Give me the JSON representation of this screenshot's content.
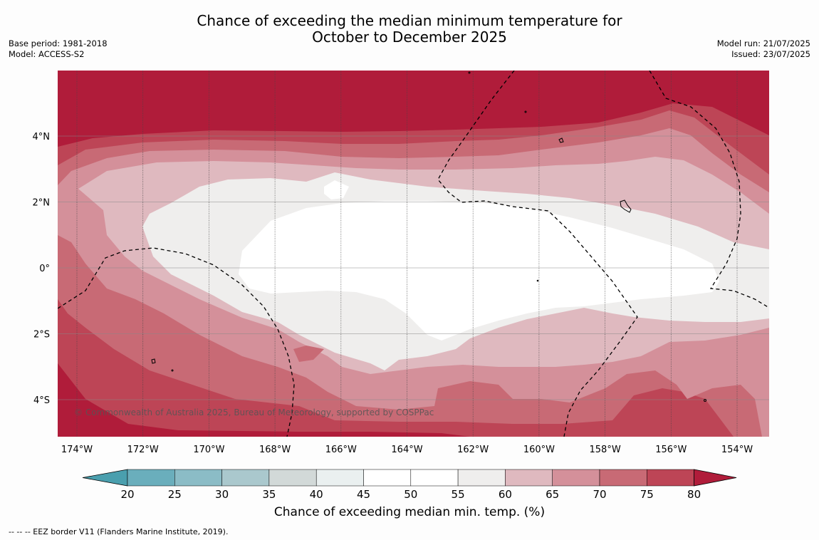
{
  "header": {
    "title_line1": "Chance of exceeding the median minimum temperature for",
    "title_line2": "October to December 2025",
    "base_period": "Base period: 1981-2018",
    "model": "Model: ACCESS-S2",
    "model_run": "Model run: 21/07/2025",
    "issued": "Issued: 23/07/2025"
  },
  "map": {
    "lon_labels": [
      "174°W",
      "172°W",
      "170°W",
      "168°W",
      "166°W",
      "164°W",
      "162°W",
      "160°W",
      "158°W",
      "156°W",
      "154°W"
    ],
    "lat_labels": [
      "4°N",
      "2°N",
      "0°",
      "2°S",
      "4°S"
    ],
    "copyright": "© Commonwealth of Australia 2025, Bureau of Meteorology, supported by COSPPac"
  },
  "colorbar": {
    "ticks": [
      "20",
      "25",
      "30",
      "35",
      "40",
      "45",
      "50",
      "55",
      "60",
      "65",
      "70",
      "75",
      "80"
    ],
    "under_color": "#4a9fae",
    "over_color": "#b01c3a",
    "colors": [
      "#6aaebc",
      "#8bbcc6",
      "#aac8cd",
      "#d2d9d8",
      "#eaf0f0",
      "#ffffff",
      "#ffffff",
      "#efeeed",
      "#dfb9bf",
      "#d4909a",
      "#c86a75",
      "#bd4556"
    ],
    "label": "Chance of exceeding median min. temp. (%)"
  },
  "legend_note": "--  --  -- EEZ border V11 (Flanders Marine Institute, 2019)."
}
